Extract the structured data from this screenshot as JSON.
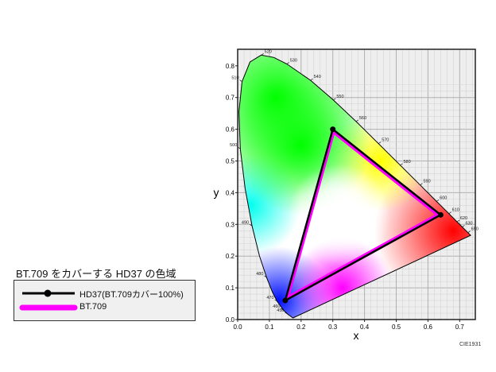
{
  "chart_data": {
    "type": "scatter",
    "title": "",
    "xlabel": "x",
    "ylabel": "y",
    "xlim": [
      0,
      0.75
    ],
    "ylim": [
      0,
      0.85
    ],
    "xticks": [
      "0.0",
      "0.1",
      "0.2",
      "0.3",
      "0.4",
      "0.5",
      "0.6",
      "0.7"
    ],
    "yticks": [
      "0.0",
      "0.1",
      "0.2",
      "0.3",
      "0.4",
      "0.5",
      "0.6",
      "0.7",
      "0.8"
    ],
    "grid": true,
    "spectral_locus": [
      {
        "nm": "",
        "x": 0.1741,
        "y": 0.005
      },
      {
        "nm": "450",
        "x": 0.1566,
        "y": 0.0177
      },
      {
        "nm": "460",
        "x": 0.144,
        "y": 0.0297
      },
      {
        "nm": "470",
        "x": 0.1241,
        "y": 0.0578
      },
      {
        "nm": "",
        "x": 0.1096,
        "y": 0.0868
      },
      {
        "nm": "480",
        "x": 0.0913,
        "y": 0.1327
      },
      {
        "nm": "",
        "x": 0.0687,
        "y": 0.2007
      },
      {
        "nm": "490",
        "x": 0.0454,
        "y": 0.295
      },
      {
        "nm": "",
        "x": 0.0235,
        "y": 0.4127
      },
      {
        "nm": "500",
        "x": 0.0082,
        "y": 0.5384
      },
      {
        "nm": "",
        "x": 0.0039,
        "y": 0.6548
      },
      {
        "nm": "510",
        "x": 0.0139,
        "y": 0.7502
      },
      {
        "nm": "",
        "x": 0.0389,
        "y": 0.812
      },
      {
        "nm": "520",
        "x": 0.0743,
        "y": 0.8338
      },
      {
        "nm": "",
        "x": 0.1142,
        "y": 0.8262
      },
      {
        "nm": "530",
        "x": 0.1547,
        "y": 0.8059
      },
      {
        "nm": "540",
        "x": 0.2296,
        "y": 0.7543
      },
      {
        "nm": "550",
        "x": 0.3016,
        "y": 0.6923
      },
      {
        "nm": "560",
        "x": 0.3731,
        "y": 0.6245
      },
      {
        "nm": "570",
        "x": 0.4441,
        "y": 0.5547
      },
      {
        "nm": "580",
        "x": 0.5125,
        "y": 0.4866
      },
      {
        "nm": "590",
        "x": 0.5752,
        "y": 0.4242
      },
      {
        "nm": "600",
        "x": 0.627,
        "y": 0.3725
      },
      {
        "nm": "610",
        "x": 0.6658,
        "y": 0.334
      },
      {
        "nm": "620",
        "x": 0.6915,
        "y": 0.3083
      },
      {
        "nm": "630",
        "x": 0.7079,
        "y": 0.292
      },
      {
        "nm": "650",
        "x": 0.726,
        "y": 0.274
      },
      {
        "nm": "",
        "x": 0.7347,
        "y": 0.2653
      }
    ],
    "series": [
      {
        "name": "HD37(BT.709カバー100%)",
        "color": "#000000",
        "points": [
          [
            0.64,
            0.33
          ],
          [
            0.3,
            0.6
          ],
          [
            0.15,
            0.06
          ]
        ]
      },
      {
        "name": "BT.709",
        "color": "#ff00ff",
        "points": [
          [
            0.64,
            0.33
          ],
          [
            0.3,
            0.6
          ],
          [
            0.15,
            0.06
          ]
        ]
      }
    ],
    "legend_title": "BT.709 をカバーする HD37 の色域",
    "legend_placement": "bottom-left",
    "credit": "CIE1931"
  }
}
